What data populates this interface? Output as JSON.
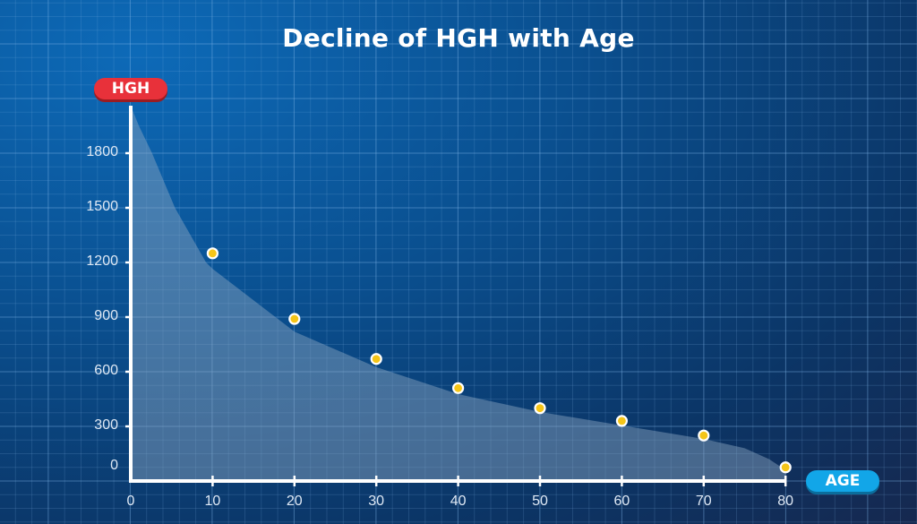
{
  "chart_data": {
    "type": "scatter",
    "title": "Decline of HGH with Age",
    "xlabel": "AGE",
    "ylabel": "HGH",
    "xlim": [
      0,
      80
    ],
    "ylim": [
      0,
      2050
    ],
    "xticks": [
      0,
      10,
      20,
      30,
      40,
      50,
      60,
      70,
      80
    ],
    "yticks": [
      0,
      300,
      600,
      900,
      1200,
      1500,
      1800
    ],
    "grid": true,
    "points": {
      "x": [
        10,
        20,
        30,
        40,
        50,
        60,
        70,
        80
      ],
      "y": [
        1250,
        890,
        670,
        510,
        400,
        330,
        250,
        75
      ]
    },
    "curve": {
      "x": [
        0,
        1,
        2.6,
        5.4,
        9.2,
        10,
        20,
        30,
        40,
        50,
        60,
        70,
        75,
        78,
        80
      ],
      "y": [
        2060,
        1950,
        1800,
        1500,
        1200,
        1165,
        820,
        625,
        477,
        379,
        305,
        231,
        180,
        120,
        60
      ]
    },
    "colors": {
      "point": "#f5c518",
      "area": "#8fa9c4",
      "hgh_badge": "#e8313a",
      "age_badge": "#12a6e8"
    }
  }
}
